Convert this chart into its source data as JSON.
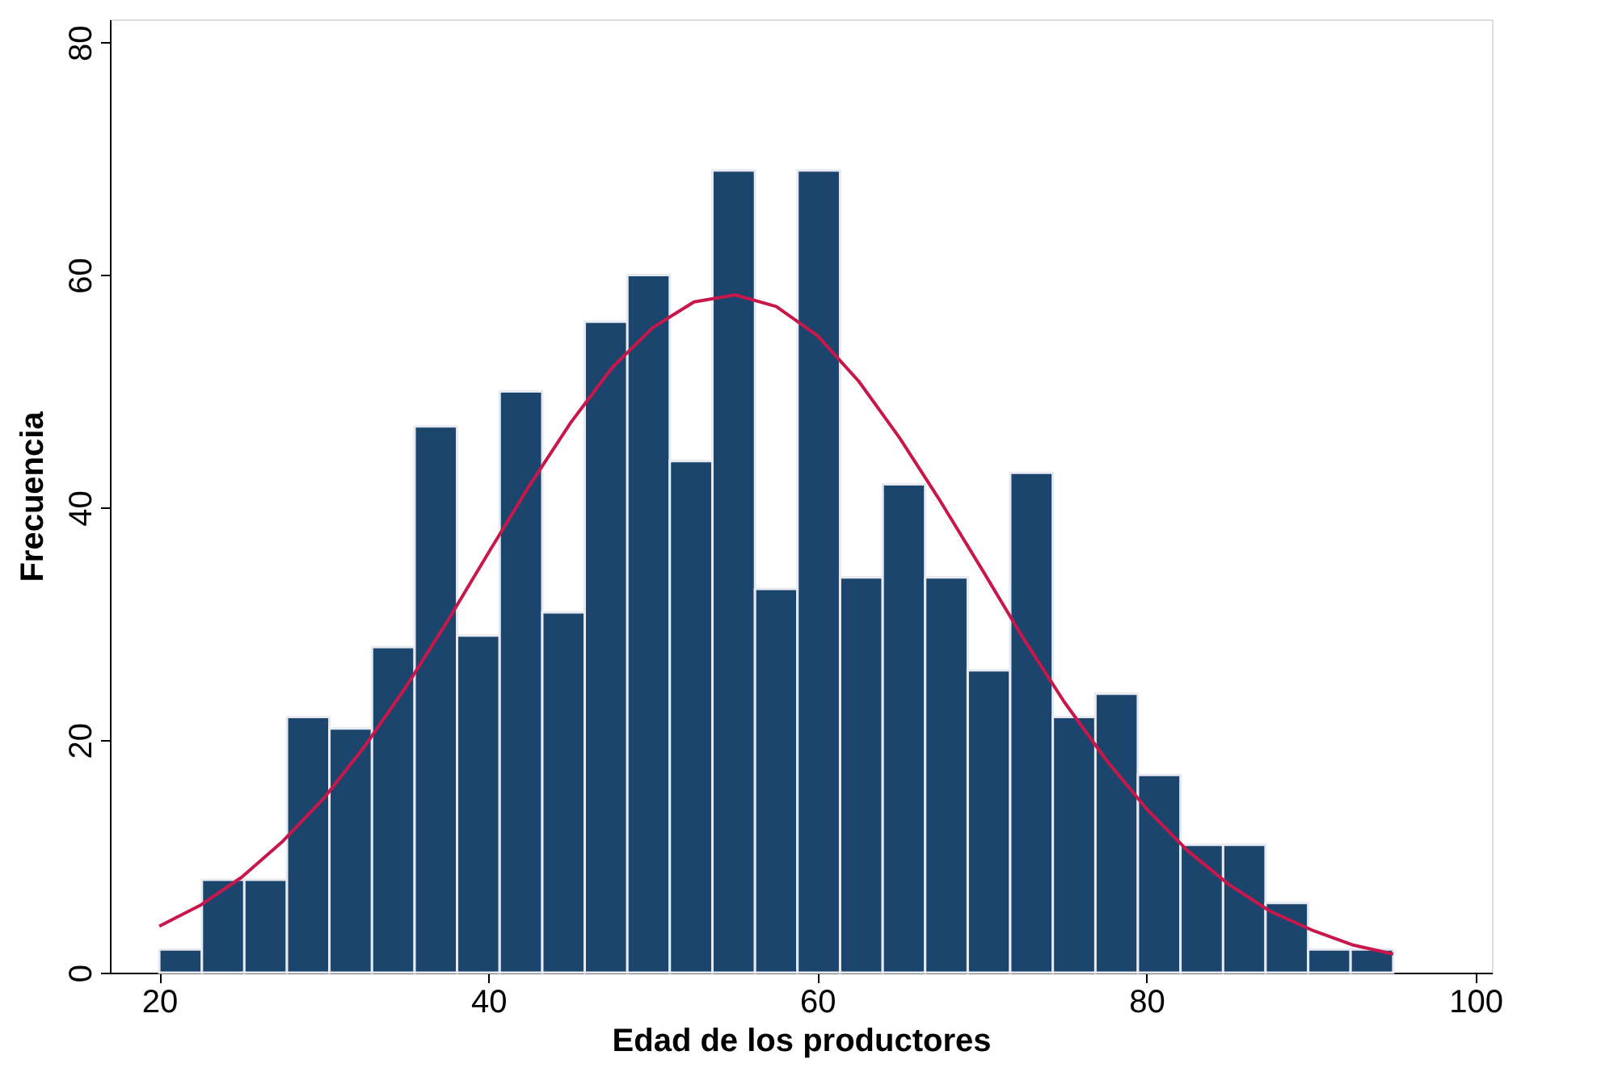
{
  "chart_data": {
    "type": "histogram",
    "xlabel": "Edad de los productores",
    "ylabel": "Frecuencia",
    "bins": [
      20,
      22.59,
      25.17,
      27.76,
      30.34,
      32.93,
      35.52,
      38.1,
      40.69,
      43.28,
      45.86,
      48.45,
      51.03,
      53.62,
      56.21,
      58.79,
      61.38,
      63.97,
      66.55,
      69.14,
      71.72,
      74.31,
      76.9,
      79.48,
      82.07,
      84.66,
      87.24,
      89.83,
      92.41,
      95
    ],
    "values": [
      2,
      8,
      8,
      22,
      21,
      28,
      47,
      29,
      50,
      31,
      56,
      60,
      44,
      69,
      33,
      69,
      34,
      42,
      34,
      26,
      43,
      22,
      24,
      17,
      11,
      11,
      6,
      2,
      2
    ],
    "color": "#1c456e",
    "series": [
      {
        "type": "line",
        "color": "#c8174a",
        "x": [
          20,
          22.5,
          25,
          27.5,
          30,
          32.5,
          35,
          37.5,
          40,
          42.5,
          45,
          47.5,
          50,
          52.5,
          55,
          57.5,
          60,
          62.5,
          65,
          67.5,
          70,
          72.5,
          75,
          77.5,
          80,
          82.5,
          85,
          87.5,
          90,
          92.5,
          95
        ],
        "values": [
          4.0,
          5.8,
          8.2,
          11.3,
          15.0,
          19.5,
          24.6,
          30.2,
          36.1,
          41.9,
          47.3,
          52.0,
          55.5,
          57.7,
          58.3,
          57.3,
          54.8,
          50.9,
          46.0,
          40.5,
          34.7,
          28.8,
          23.3,
          18.4,
          14.1,
          10.5,
          7.6,
          5.3,
          3.7,
          2.4,
          1.6
        ]
      }
    ],
    "xlim": [
      17,
      101
    ],
    "xticks": [
      20,
      40,
      60,
      80,
      100
    ],
    "ylim": [
      0,
      82
    ],
    "yticks": [
      0,
      20,
      40,
      60,
      80
    ],
    "grid": false
  }
}
